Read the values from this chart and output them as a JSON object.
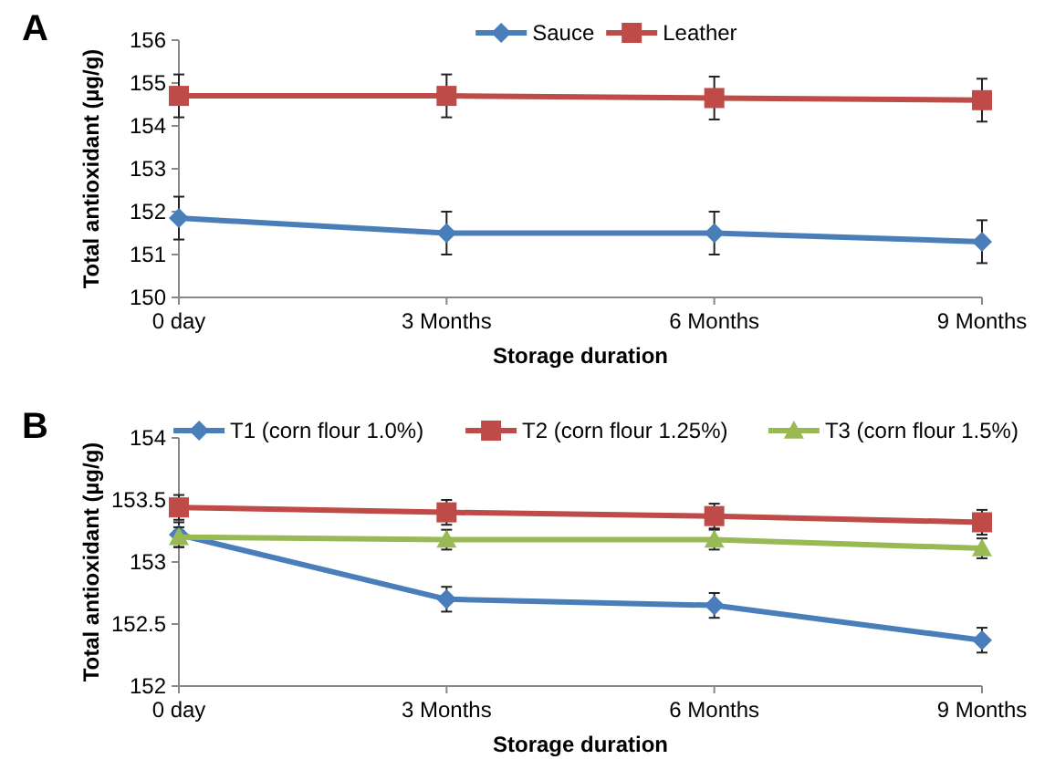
{
  "chart_data": [
    {
      "type": "line",
      "title": "A",
      "xlabel": "Storage duration",
      "ylabel": "Total antioxidant (µg/g)",
      "categories": [
        "0 day",
        "3 Months",
        "6 Months",
        "9 Months"
      ],
      "ylim": [
        150,
        156
      ],
      "yticks": [
        150,
        151,
        152,
        153,
        154,
        155,
        156
      ],
      "legend": "top",
      "series": [
        {
          "name": "Sauce",
          "color": "#4a7ebb",
          "marker": "diamond",
          "values": [
            151.85,
            151.5,
            151.5,
            151.3
          ],
          "errors": [
            0.5,
            0.5,
            0.5,
            0.5
          ]
        },
        {
          "name": "Leather",
          "color": "#be4b48",
          "marker": "square",
          "values": [
            154.7,
            154.7,
            154.65,
            154.6
          ],
          "errors": [
            0.5,
            0.5,
            0.5,
            0.5
          ]
        }
      ]
    },
    {
      "type": "line",
      "title": "B",
      "xlabel": "Storage duration",
      "ylabel": "Total antioxidant (µg/g)",
      "categories": [
        "0 day",
        "3 Months",
        "6 Months",
        "9 Months"
      ],
      "ylim": [
        152,
        154
      ],
      "yticks": [
        152,
        152.5,
        153,
        153.5,
        154
      ],
      "legend": "top",
      "series": [
        {
          "name": "T1 (corn flour 1.0%)",
          "color": "#4a7ebb",
          "marker": "diamond",
          "values": [
            153.22,
            152.7,
            152.65,
            152.37
          ],
          "errors": [
            0.1,
            0.1,
            0.1,
            0.1
          ]
        },
        {
          "name": "T2 (corn flour 1.25%)",
          "color": "#be4b48",
          "marker": "square",
          "values": [
            153.44,
            153.4,
            153.37,
            153.32
          ],
          "errors": [
            0.1,
            0.1,
            0.1,
            0.1
          ]
        },
        {
          "name": "T3 (corn flour 1.5%)",
          "color": "#98b954",
          "marker": "triangle",
          "values": [
            153.2,
            153.18,
            153.18,
            153.11
          ],
          "errors": [
            0.08,
            0.08,
            0.08,
            0.08
          ]
        }
      ]
    }
  ]
}
